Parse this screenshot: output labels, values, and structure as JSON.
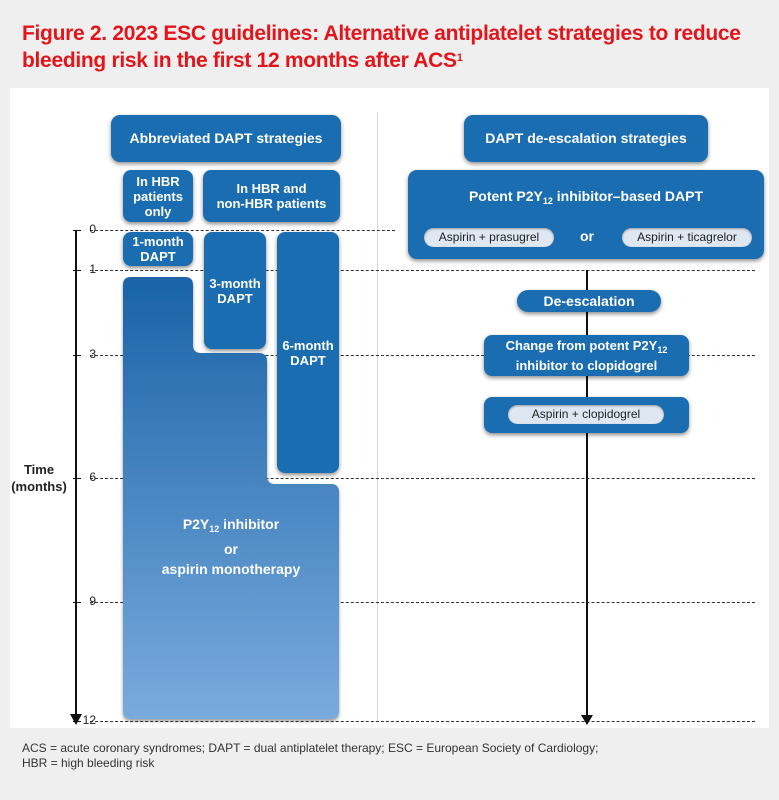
{
  "title": {
    "main": "Figure 2. 2023 ESC guidelines: Alternative antiplatelet strategies to reduce bleeding risk in the first 12 months after ACS",
    "ref": "1"
  },
  "headers": {
    "abbreviated": "Abbreviated DAPT strategies",
    "deescalation": "DAPT de-escalation strategies"
  },
  "groups": {
    "hbr_only": [
      "In HBR",
      "patients",
      "only"
    ],
    "hbr_and_non": [
      "In HBR and",
      "non-HBR patients"
    ]
  },
  "bars": {
    "one_month": [
      "1-month",
      "DAPT"
    ],
    "three_month": [
      "3-month",
      "DAPT"
    ],
    "six_month": [
      "6-month",
      "DAPT"
    ],
    "monotherapy": {
      "line1_pre": "P2Y",
      "line1_sub": "12",
      "line1_post": " inhibitor",
      "line2": "or",
      "line3": "aspirin monotherapy"
    }
  },
  "deescalation": {
    "potent": {
      "pre": "Potent P2Y",
      "sub": "12",
      "post": " inhibitor–based DAPT"
    },
    "pill_left": "Aspirin + prasugrel",
    "or": "or",
    "pill_right": "Aspirin + ticagrelor",
    "step": "De-escalation",
    "change": {
      "line1_pre": "Change from potent P2Y",
      "line1_sub": "12",
      "line2": "inhibitor to clopidogrel"
    },
    "clopidogrel": "Aspirin + clopidogrel"
  },
  "axis": {
    "label": [
      "Time",
      "(months)"
    ],
    "ticks": [
      "0",
      "1",
      "3",
      "6",
      "9",
      "12"
    ]
  },
  "footer": {
    "line1": "ACS = acute coronary syndromes; DAPT = dual antiplatelet therapy; ESC = European Society of Cardiology;",
    "line2": "HBR = high bleeding risk"
  },
  "colors": {
    "title": "#e3151a",
    "box": "#1b6db1",
    "panel": "#ffffff",
    "background": "#efefef"
  }
}
